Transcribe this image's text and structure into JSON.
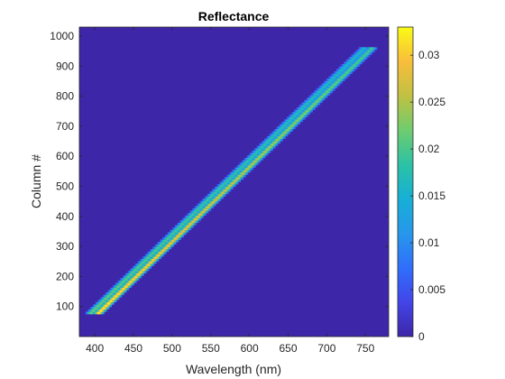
{
  "chart_data": {
    "type": "heatmap",
    "title": "Reflectance",
    "xlabel": "Wavelength (nm)",
    "ylabel": "Column #",
    "xlim": [
      380,
      780
    ],
    "ylim": [
      0,
      1030
    ],
    "xticks": [
      400,
      450,
      500,
      550,
      600,
      650,
      700,
      750
    ],
    "yticks": [
      100,
      200,
      300,
      400,
      500,
      600,
      700,
      800,
      900,
      1000
    ],
    "xtick_labels": [
      "400",
      "450",
      "500",
      "550",
      "600",
      "650",
      "700",
      "750"
    ],
    "ytick_labels": [
      "100",
      "200",
      "300",
      "400",
      "500",
      "600",
      "700",
      "800",
      "900",
      "1000"
    ],
    "colormap": "parula",
    "colormap_stops": [
      "#3e26a8",
      "#4245e8",
      "#2f6ffb",
      "#2797eb",
      "#17afd6",
      "#2bc2a5",
      "#6fcc6f",
      "#c0c142",
      "#f9bd3b",
      "#f9fb15"
    ],
    "clim": [
      0,
      0.033
    ],
    "colorbar": {
      "ticks": [
        0,
        0.005,
        0.01,
        0.015,
        0.02,
        0.025,
        0.03
      ],
      "tick_labels": [
        "0",
        "0.005",
        "0.01",
        "0.015",
        "0.02",
        "0.025",
        "0.03"
      ]
    },
    "band": {
      "description_rows": "non-zero reflectance lies along a diagonal ridge",
      "start": {
        "wavelength": 400,
        "column": 75
      },
      "end": {
        "wavelength": 755,
        "column": 960
      },
      "column_range": [
        75,
        960
      ],
      "ridges": [
        {
          "offset_nm": -5,
          "peak_start": 0.022,
          "peak_end": 0.016
        },
        {
          "offset_nm": 5,
          "peak_start": 0.033,
          "peak_end": 0.02
        }
      ],
      "half_width_nm": 12,
      "background": 0
    }
  }
}
